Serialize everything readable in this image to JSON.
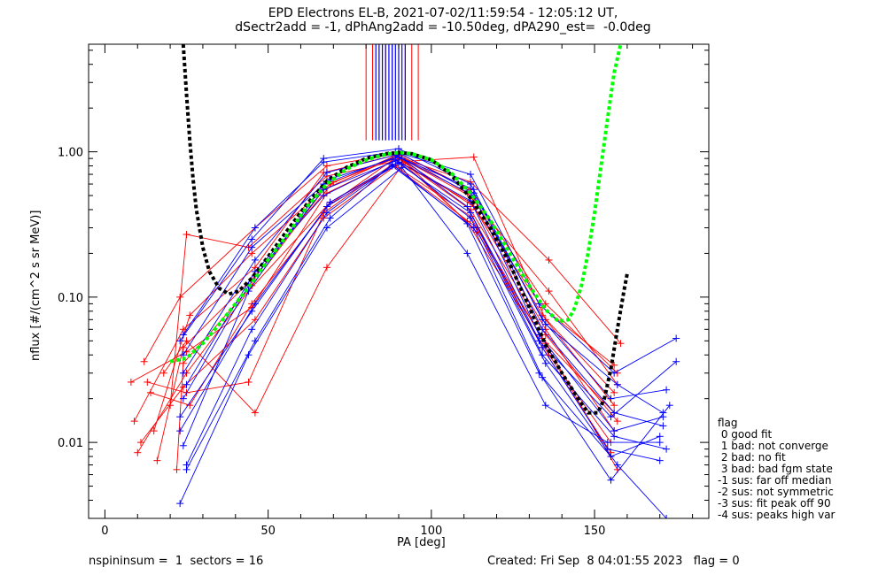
{
  "title": {
    "line1": "EPD Electrons EL-B, 2021-07-02/11:59:54 - 12:05:12 UT,",
    "line2": "dSectr2add = -1, dPhAng2add = -10.50deg, dPA290_est=  -0.0deg"
  },
  "footer": {
    "left": "nspininsum =  1  sectors = 16",
    "right": "Created: Fri Sep  8 04:01:55 2023   flag = 0"
  },
  "legend": {
    "title": "flag",
    "items": [
      " 0 good fit",
      " 1 bad: not converge",
      " 2 bad: no fit",
      " 3 bad: bad fgm state",
      "-1 sus: far off median",
      "-2 sus: not symmetric",
      "-3 sus: fit peak off 90",
      "-4 sus: peaks high var"
    ]
  },
  "chart_data": {
    "type": "line",
    "xlabel": "PA [deg]",
    "ylabel": "nflux [#/(cm^2 s sr MeV)]",
    "xlim": [
      -5,
      185
    ],
    "ylim": [
      0.003,
      5.5
    ],
    "yscale": "log",
    "xticks": [
      0,
      50,
      100,
      150
    ],
    "yticks": [
      {
        "value": 0.01,
        "label": "0.01"
      },
      {
        "value": 0.1,
        "label": "0.10"
      },
      {
        "value": 1.0,
        "label": "1.00"
      }
    ],
    "colors": {
      "red": "#ff0000",
      "blue": "#0000ff",
      "black": "#000000",
      "green": "#00ff00"
    },
    "series": [
      {
        "color": "red",
        "x": [
          8,
          25,
          45,
          68,
          90,
          112,
          135,
          157
        ],
        "y": [
          0.026,
          0.042,
          0.085,
          0.52,
          0.9,
          0.4,
          0.055,
          0.014
        ]
      },
      {
        "color": "red",
        "x": [
          9,
          24,
          46,
          67,
          89,
          113,
          134,
          156
        ],
        "y": [
          0.014,
          0.06,
          0.16,
          0.72,
          0.95,
          0.48,
          0.075,
          0.022
        ]
      },
      {
        "color": "red",
        "x": [
          10,
          25,
          44,
          69,
          91,
          111,
          136,
          155
        ],
        "y": [
          0.0085,
          0.03,
          0.11,
          0.45,
          0.85,
          0.33,
          0.04,
          0.01
        ]
      },
      {
        "color": "red",
        "x": [
          12,
          23,
          46,
          68,
          90,
          112,
          135,
          157
        ],
        "y": [
          0.036,
          0.1,
          0.3,
          0.8,
          0.98,
          0.55,
          0.09,
          0.03
        ]
      },
      {
        "color": "red",
        "x": [
          14,
          26,
          45,
          67,
          88,
          114,
          134,
          156
        ],
        "y": [
          0.022,
          0.018,
          0.09,
          0.38,
          0.82,
          0.3,
          0.052,
          0.016
        ]
      },
      {
        "color": "red",
        "x": [
          16,
          24,
          46,
          70,
          90,
          112,
          136,
          158
        ],
        "y": [
          0.0075,
          0.045,
          0.14,
          0.62,
          0.92,
          0.62,
          0.18,
          0.048
        ]
      },
      {
        "color": "red",
        "x": [
          20,
          25,
          44,
          68,
          91,
          113,
          135,
          156
        ],
        "y": [
          0.018,
          0.27,
          0.22,
          0.68,
          0.88,
          0.42,
          0.06,
          0.012
        ]
      },
      {
        "color": "red",
        "x": [
          11,
          24,
          46,
          67,
          89,
          112,
          134,
          155
        ],
        "y": [
          0.01,
          0.024,
          0.07,
          0.35,
          0.8,
          0.36,
          0.045,
          0.0085
        ]
      },
      {
        "color": "red",
        "x": [
          15,
          26,
          45,
          69,
          90,
          111,
          136,
          157
        ],
        "y": [
          0.012,
          0.075,
          0.2,
          0.6,
          0.96,
          0.52,
          0.11,
          0.025
        ]
      },
      {
        "color": "red",
        "x": [
          18,
          25,
          46,
          68,
          92,
          113,
          135,
          156
        ],
        "y": [
          0.03,
          0.05,
          0.016,
          0.16,
          0.86,
          0.92,
          0.07,
          0.018
        ]
      },
      {
        "color": "red",
        "x": [
          22,
          24,
          45,
          67,
          88,
          112,
          134,
          156
        ],
        "y": [
          0.0065,
          0.035,
          0.12,
          0.55,
          0.9,
          0.45,
          0.085,
          0.034
        ]
      },
      {
        "color": "red",
        "x": [
          13,
          25,
          44,
          68,
          90,
          114,
          135,
          157
        ],
        "y": [
          0.026,
          0.022,
          0.026,
          0.42,
          0.94,
          0.28,
          0.048,
          0.0065
        ]
      },
      {
        "color": "blue",
        "x": [
          23,
          45,
          67,
          90,
          112,
          134,
          155,
          172
        ],
        "y": [
          0.05,
          0.25,
          0.9,
          1.05,
          0.6,
          0.07,
          0.02,
          0.023
        ]
      },
      {
        "color": "blue",
        "x": [
          24,
          46,
          68,
          89,
          113,
          133,
          156,
          171
        ],
        "y": [
          0.03,
          0.18,
          0.72,
          0.95,
          0.5,
          0.055,
          0.012,
          0.015
        ]
      },
      {
        "color": "blue",
        "x": [
          24,
          44,
          67,
          91,
          111,
          134,
          154,
          170
        ],
        "y": [
          0.02,
          0.12,
          0.55,
          0.9,
          0.42,
          0.045,
          0.009,
          0.0075
        ]
      },
      {
        "color": "blue",
        "x": [
          23,
          46,
          69,
          90,
          112,
          135,
          157,
          172
        ],
        "y": [
          0.012,
          0.09,
          0.45,
          0.85,
          0.35,
          0.035,
          0.007,
          0.003
        ]
      },
      {
        "color": "blue",
        "x": [
          25,
          45,
          68,
          88,
          113,
          134,
          155,
          173
        ],
        "y": [
          0.007,
          0.06,
          0.38,
          0.8,
          0.3,
          0.028,
          0.0055,
          0.018
        ]
      },
      {
        "color": "blue",
        "x": [
          24,
          46,
          67,
          89,
          112,
          133,
          156,
          175
        ],
        "y": [
          0.055,
          0.3,
          0.85,
          1.0,
          0.7,
          0.09,
          0.03,
          0.052
        ]
      },
      {
        "color": "blue",
        "x": [
          23,
          44,
          68,
          91,
          111,
          135,
          154,
          170
        ],
        "y": [
          0.0038,
          0.04,
          0.3,
          0.78,
          0.2,
          0.018,
          0.01,
          0.01
        ]
      },
      {
        "color": "blue",
        "x": [
          24,
          45,
          69,
          90,
          113,
          134,
          156,
          171
        ],
        "y": [
          0.04,
          0.22,
          0.65,
          0.92,
          0.55,
          0.06,
          0.016,
          0.013
        ]
      },
      {
        "color": "blue",
        "x": [
          25,
          46,
          67,
          89,
          112,
          133,
          155,
          175
        ],
        "y": [
          0.025,
          0.15,
          0.5,
          0.88,
          0.46,
          0.05,
          0.015,
          0.036
        ]
      },
      {
        "color": "blue",
        "x": [
          23,
          45,
          68,
          90,
          112,
          134,
          156,
          172
        ],
        "y": [
          0.015,
          0.08,
          0.42,
          0.83,
          0.38,
          0.04,
          0.011,
          0.009
        ]
      },
      {
        "color": "blue",
        "x": [
          24,
          44,
          67,
          91,
          113,
          135,
          157,
          171
        ],
        "y": [
          0.0095,
          0.11,
          0.6,
          0.96,
          0.52,
          0.065,
          0.025,
          0.016
        ]
      },
      {
        "color": "blue",
        "x": [
          25,
          46,
          69,
          88,
          111,
          133,
          155,
          170
        ],
        "y": [
          0.0065,
          0.05,
          0.35,
          0.82,
          0.32,
          0.03,
          0.008,
          0.011
        ]
      }
    ],
    "vertical_lines": {
      "y_from": 1.2,
      "red_x": [
        80,
        82,
        84,
        86,
        88,
        90,
        92,
        94,
        96
      ],
      "blue_x": [
        83,
        84,
        85,
        86,
        87,
        88,
        89,
        90,
        91,
        92
      ]
    },
    "fits": [
      {
        "color": "black",
        "x": [
          24,
          25,
          26,
          27,
          28,
          30,
          32,
          35,
          38,
          41,
          45,
          50,
          56,
          62,
          68,
          74,
          80,
          86,
          90,
          94,
          100,
          106,
          112,
          118,
          124,
          130,
          135,
          140,
          145,
          148,
          151,
          153,
          155,
          157,
          159,
          160
        ],
        "y": [
          5.5,
          2.5,
          1.2,
          0.65,
          0.4,
          0.22,
          0.15,
          0.115,
          0.105,
          0.11,
          0.135,
          0.19,
          0.29,
          0.44,
          0.63,
          0.78,
          0.9,
          0.97,
          0.99,
          0.97,
          0.88,
          0.7,
          0.48,
          0.3,
          0.17,
          0.085,
          0.047,
          0.03,
          0.02,
          0.016,
          0.016,
          0.02,
          0.032,
          0.06,
          0.11,
          0.145
        ]
      },
      {
        "color": "green",
        "x": [
          20,
          25,
          30,
          35,
          40,
          45,
          50,
          56,
          62,
          68,
          74,
          80,
          86,
          90,
          94,
          100,
          106,
          112,
          118,
          124,
          130,
          135,
          139,
          142,
          144,
          146,
          148,
          150,
          152,
          154,
          156,
          158
        ],
        "y": [
          0.036,
          0.038,
          0.048,
          0.065,
          0.09,
          0.125,
          0.18,
          0.27,
          0.42,
          0.6,
          0.76,
          0.88,
          0.96,
          0.99,
          0.97,
          0.88,
          0.72,
          0.52,
          0.34,
          0.2,
          0.12,
          0.082,
          0.068,
          0.07,
          0.085,
          0.12,
          0.2,
          0.38,
          0.8,
          1.7,
          3.5,
          5.5
        ]
      }
    ]
  }
}
